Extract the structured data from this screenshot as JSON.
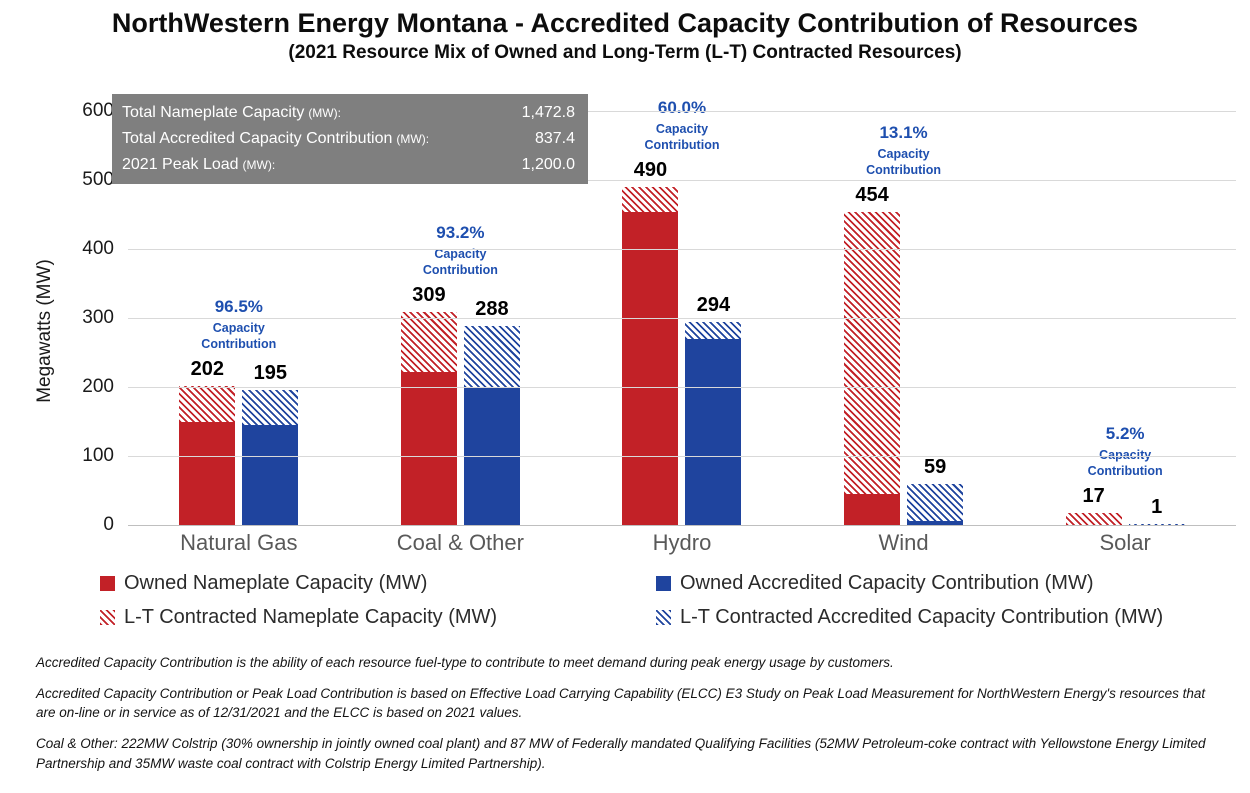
{
  "header": {
    "title": "NorthWestern Energy Montana - Accredited Capacity Contribution of Resources",
    "subtitle": "(2021 Resource Mix of Owned and Long-Term (L-T) Contracted Resources)"
  },
  "stats_box": {
    "rows": [
      {
        "label": "Total Nameplate Capacity",
        "unit": "(MW):",
        "value": "1,472.8"
      },
      {
        "label": "Total Accredited Capacity Contribution",
        "unit": "(MW):",
        "value": "837.4"
      },
      {
        "label": "2021 Peak Load",
        "unit": "(MW):",
        "value": "1,200.0"
      }
    ]
  },
  "y_axis": {
    "title": "Megawatts (MW)",
    "ticks": [
      "600",
      "500",
      "400",
      "300",
      "200",
      "100",
      "0"
    ]
  },
  "chart_data": {
    "type": "bar",
    "title": "NorthWestern Energy Montana - Accredited Capacity Contribution of Resources",
    "subtitle": "(2021 Resource Mix of Owned and Long-Term (L-T) Contracted Resources)",
    "categories": [
      "Natural Gas",
      "Coal & Other",
      "Hydro",
      "Wind",
      "Solar"
    ],
    "series": [
      {
        "name": "Owned Nameplate Capacity (MW)",
        "style": "solid-red",
        "values": [
          150,
          222,
          453,
          45,
          0
        ]
      },
      {
        "name": "L-T Contracted Nameplate Capacity (MW)",
        "style": "hatch-red",
        "values": [
          52,
          87,
          37,
          409,
          17
        ]
      },
      {
        "name": "Owned Accredited Capacity Contribution (MW)",
        "style": "solid-blue",
        "values": [
          145,
          200,
          270,
          6,
          0
        ]
      },
      {
        "name": "L-T Contracted Accredited Capacity Contribution (MW)",
        "style": "hatch-blue",
        "values": [
          50,
          88,
          24,
          53,
          1
        ]
      }
    ],
    "bar_total_labels": {
      "nameplate": [
        "202",
        "309",
        "490",
        "454",
        "17"
      ],
      "accredited": [
        "195",
        "288",
        "294",
        "59",
        "1"
      ]
    },
    "pct_labels": [
      "96.5%",
      "93.2%",
      "60.0%",
      "13.1%",
      "5.2%"
    ],
    "pct_sublabel_lines": [
      "Capacity",
      "Contribution"
    ],
    "ylabel": "Megawatts (MW)",
    "ylim": [
      0,
      600
    ],
    "grid": "horizontal",
    "legend_position": "bottom"
  },
  "legend": {
    "items": [
      {
        "label": "Owned Nameplate Capacity (MW)",
        "style": "solid-red"
      },
      {
        "label": "Owned Accredited Capacity Contribution (MW)",
        "style": "solid-blue"
      },
      {
        "label": "L-T Contracted Nameplate Capacity (MW)",
        "style": "hatch-red"
      },
      {
        "label": "L-T Contracted Accredited Capacity Contribution (MW)",
        "style": "hatch-blue"
      }
    ]
  },
  "footnotes": [
    "Accredited Capacity Contribution is the ability of each resource fuel-type to contribute to meet demand during peak energy usage by customers.",
    "Accredited Capacity Contribution or Peak Load Contribution is based on Effective Load Carrying Capability (ELCC) E3 Study on Peak Load Measurement for NorthWestern Energy's resources that are on-line or in service as of 12/31/2021 and the ELCC is based on 2021 values.",
    "Coal & Other:  222MW Colstrip (30% ownership in jointly owned coal plant) and 87 MW of Federally mandated Qualifying Facilities (52MW Petroleum-coke contract with Yellowstone Energy Limited Partnership and 35MW waste coal contract with Colstrip Energy Limited Partnership)."
  ],
  "colors": {
    "red": "#C22127",
    "blue": "#1F449E",
    "pct_blue": "#1E4FAF",
    "box_gray": "#7F7F7F",
    "grid": "#D9D9D9",
    "category_gray": "#595959"
  }
}
